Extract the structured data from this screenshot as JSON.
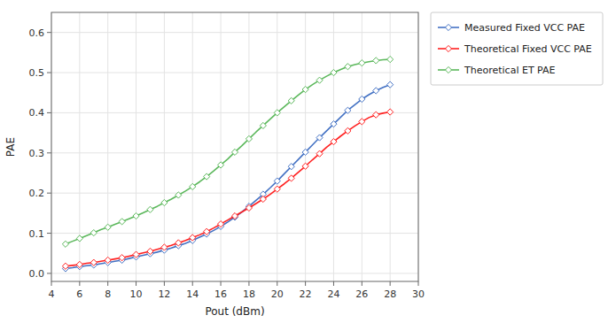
{
  "chart_data": {
    "type": "line",
    "xlabel": "Pout (dBm)",
    "ylabel": "PAE",
    "x": [
      5,
      5.5,
      6,
      6.5,
      7,
      7.5,
      8,
      8.5,
      9,
      9.5,
      10,
      10.5,
      11,
      11.5,
      12,
      12.5,
      13,
      13.5,
      14,
      14.5,
      15,
      15.5,
      16,
      16.5,
      17,
      17.5,
      18,
      18.5,
      19,
      19.5,
      20,
      20.5,
      21,
      21.5,
      22,
      22.5,
      23,
      23.5,
      24,
      24.5,
      25,
      25.5,
      26,
      26.5,
      27,
      27.5,
      28
    ],
    "series": [
      {
        "name": "Measured Fixed VCC PAE",
        "color": "#4472C4",
        "values": [
          0.012,
          0.014,
          0.017,
          0.019,
          0.021,
          0.024,
          0.027,
          0.03,
          0.033,
          0.037,
          0.041,
          0.045,
          0.049,
          0.053,
          0.058,
          0.063,
          0.069,
          0.075,
          0.082,
          0.09,
          0.098,
          0.107,
          0.117,
          0.128,
          0.14,
          0.153,
          0.167,
          0.182,
          0.197,
          0.213,
          0.23,
          0.248,
          0.266,
          0.284,
          0.302,
          0.32,
          0.338,
          0.355,
          0.372,
          0.389,
          0.406,
          0.42,
          0.434,
          0.445,
          0.455,
          0.463,
          0.47
        ]
      },
      {
        "name": "Theoretical Fixed VCC PAE",
        "color": "#FF2020",
        "values": [
          0.018,
          0.02,
          0.022,
          0.025,
          0.027,
          0.03,
          0.033,
          0.036,
          0.039,
          0.043,
          0.047,
          0.051,
          0.055,
          0.06,
          0.065,
          0.07,
          0.076,
          0.082,
          0.089,
          0.096,
          0.104,
          0.113,
          0.123,
          0.133,
          0.143,
          0.153,
          0.163,
          0.174,
          0.185,
          0.197,
          0.21,
          0.223,
          0.237,
          0.252,
          0.267,
          0.283,
          0.298,
          0.314,
          0.328,
          0.342,
          0.355,
          0.367,
          0.378,
          0.388,
          0.395,
          0.399,
          0.402
        ]
      },
      {
        "name": "Theoretical ET PAE",
        "color": "#5CB85C",
        "values": [
          0.073,
          0.08,
          0.087,
          0.094,
          0.101,
          0.109,
          0.115,
          0.122,
          0.129,
          0.136,
          0.143,
          0.151,
          0.159,
          0.167,
          0.176,
          0.185,
          0.195,
          0.205,
          0.216,
          0.228,
          0.241,
          0.255,
          0.27,
          0.285,
          0.302,
          0.318,
          0.335,
          0.352,
          0.368,
          0.384,
          0.4,
          0.415,
          0.43,
          0.444,
          0.458,
          0.47,
          0.481,
          0.491,
          0.5,
          0.508,
          0.515,
          0.52,
          0.524,
          0.527,
          0.53,
          0.532,
          0.533
        ]
      }
    ],
    "xlim": [
      4,
      30
    ],
    "ylim": [
      -0.02,
      0.65
    ],
    "xticks": [
      4,
      6,
      8,
      10,
      12,
      14,
      16,
      18,
      20,
      22,
      24,
      26,
      28,
      30
    ],
    "yticks": [
      {
        "value": 0,
        "label": "0.0"
      },
      0.1,
      0.2,
      0.3,
      0.4,
      0.5,
      0.6
    ],
    "grid": true,
    "legend": "right",
    "marker": "diamond"
  }
}
